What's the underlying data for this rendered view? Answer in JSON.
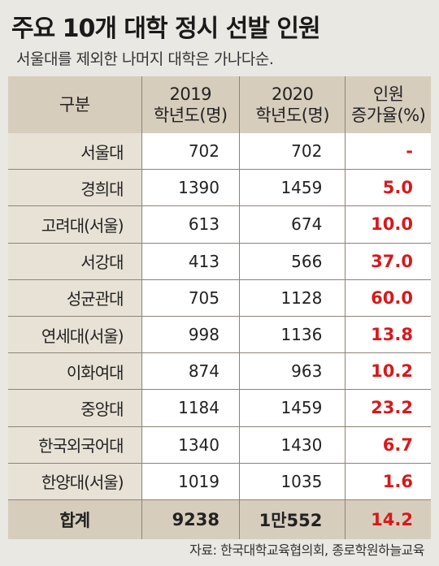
{
  "title": "주요 10개 대학 정시 선발 인원",
  "subtitle": "서울대를 제외한 나머지 대학은 가나다순.",
  "table": {
    "headers": [
      "구분",
      "2019\n학년도(명)",
      "2020\n학년도(명)",
      "인원\n증가율(%)"
    ],
    "header_lines": [
      [
        "구분"
      ],
      [
        "2019",
        "학년도(명)"
      ],
      [
        "2020",
        "학년도(명)"
      ],
      [
        "인원",
        "증가율(%)"
      ]
    ],
    "rows": [
      {
        "name": "서울대",
        "y2019": "702",
        "y2020": "702",
        "rate": "-"
      },
      {
        "name": "경희대",
        "y2019": "1390",
        "y2020": "1459",
        "rate": "5.0"
      },
      {
        "name": "고려대(서울)",
        "y2019": "613",
        "y2020": "674",
        "rate": "10.0"
      },
      {
        "name": "서강대",
        "y2019": "413",
        "y2020": "566",
        "rate": "37.0"
      },
      {
        "name": "성균관대",
        "y2019": "705",
        "y2020": "1128",
        "rate": "60.0"
      },
      {
        "name": "연세대(서울)",
        "y2019": "998",
        "y2020": "1136",
        "rate": "13.8"
      },
      {
        "name": "이화여대",
        "y2019": "874",
        "y2020": "963",
        "rate": "10.2"
      },
      {
        "name": "중앙대",
        "y2019": "1184",
        "y2020": "1459",
        "rate": "23.2"
      },
      {
        "name": "한국외국어대",
        "y2019": "1340",
        "y2020": "1430",
        "rate": "6.7"
      },
      {
        "name": "한양대(서울)",
        "y2019": "1019",
        "y2020": "1035",
        "rate": "1.6"
      }
    ],
    "total": {
      "name": "합계",
      "y2019": "9238",
      "y2020": "1만552",
      "rate": "14.2"
    }
  },
  "source": "자료: 한국대학교육협의회, 종로학원하늘교육",
  "colors": {
    "accent_red": "#d7191c",
    "header_bg": "#d7cdbd",
    "name_col_bg": "#e8e2d6",
    "page_bg": "#e9e8e3"
  }
}
